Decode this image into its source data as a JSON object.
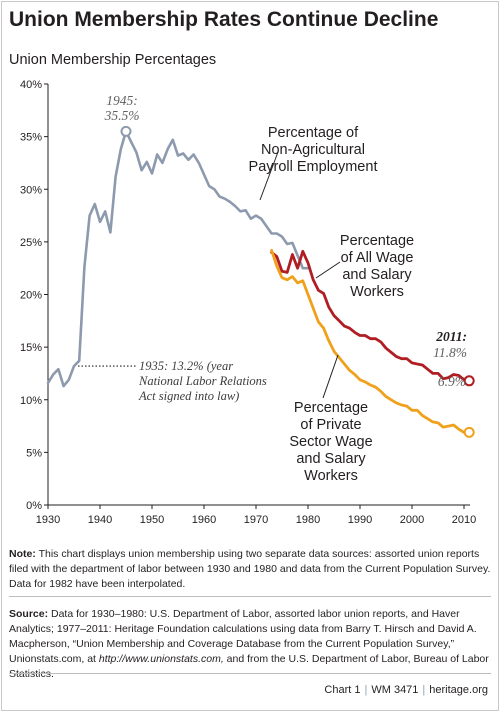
{
  "title": "Union Membership Rates Continue Decline",
  "subtitle": "Union Membership Percentages",
  "chart_data": {
    "type": "line",
    "xlim": [
      1930,
      2012
    ],
    "ylim": [
      0,
      40
    ],
    "x_ticks": [
      1930,
      1940,
      1950,
      1960,
      1970,
      1980,
      1990,
      2000,
      2010
    ],
    "y_ticks": [
      "0%",
      "5%",
      "10%",
      "15%",
      "20%",
      "25%",
      "30%",
      "35%",
      "40%"
    ],
    "grid": false,
    "series": [
      {
        "name": "Percentage of Non-Agricultural Payroll Employment",
        "color": "#8d9aae",
        "x": [
          1930,
          1931,
          1932,
          1933,
          1934,
          1935,
          1936,
          1937,
          1938,
          1939,
          1940,
          1941,
          1942,
          1943,
          1944,
          1945,
          1946,
          1947,
          1948,
          1949,
          1950,
          1951,
          1952,
          1953,
          1954,
          1955,
          1956,
          1957,
          1958,
          1959,
          1960,
          1961,
          1962,
          1963,
          1964,
          1965,
          1966,
          1967,
          1968,
          1969,
          1970,
          1971,
          1972,
          1973,
          1974,
          1975,
          1976,
          1977,
          1978,
          1979,
          1980
        ],
        "values": [
          11.6,
          12.4,
          12.9,
          11.3,
          11.9,
          13.2,
          13.7,
          22.6,
          27.5,
          28.6,
          26.9,
          27.9,
          25.9,
          31.2,
          33.8,
          35.5,
          34.5,
          33.5,
          31.8,
          32.6,
          31.5,
          33.3,
          32.5,
          33.8,
          34.7,
          33.2,
          33.4,
          32.8,
          33.3,
          32.5,
          31.4,
          30.3,
          30.0,
          29.3,
          29.1,
          28.8,
          28.4,
          27.9,
          28.0,
          27.2,
          27.5,
          27.2,
          26.5,
          25.8,
          25.8,
          25.5,
          24.8,
          24.9,
          23.7,
          22.5,
          22.5
        ]
      },
      {
        "name": "Percentage of All Wage and Salary Workers",
        "color": "#b01e23",
        "x": [
          1973,
          1974,
          1975,
          1976,
          1977,
          1978,
          1979,
          1980,
          1981,
          1982,
          1983,
          1984,
          1985,
          1986,
          1987,
          1988,
          1989,
          1990,
          1991,
          1992,
          1993,
          1994,
          1995,
          1996,
          1997,
          1998,
          1999,
          2000,
          2001,
          2002,
          2003,
          2004,
          2005,
          2006,
          2007,
          2008,
          2009,
          2010,
          2011
        ],
        "values": [
          24.0,
          23.6,
          22.2,
          22.1,
          23.8,
          22.5,
          24.1,
          23.0,
          21.4,
          20.4,
          20.1,
          18.8,
          18.0,
          17.5,
          17.0,
          16.8,
          16.4,
          16.1,
          16.1,
          15.8,
          15.8,
          15.5,
          14.9,
          14.5,
          14.1,
          13.9,
          13.9,
          13.5,
          13.4,
          13.3,
          12.9,
          12.5,
          12.5,
          12.0,
          12.1,
          12.4,
          12.3,
          11.9,
          11.8
        ]
      },
      {
        "name": "Percentage of Private Sector Wage and Salary Workers",
        "color": "#f0a11c",
        "x": [
          1973,
          1974,
          1975,
          1976,
          1977,
          1978,
          1979,
          1980,
          1981,
          1982,
          1983,
          1984,
          1985,
          1986,
          1987,
          1988,
          1989,
          1990,
          1991,
          1992,
          1993,
          1994,
          1995,
          1996,
          1997,
          1998,
          1999,
          2000,
          2001,
          2002,
          2003,
          2004,
          2005,
          2006,
          2007,
          2008,
          2009,
          2010,
          2011
        ],
        "values": [
          24.2,
          22.7,
          21.6,
          21.4,
          21.7,
          21.1,
          21.3,
          20.0,
          18.7,
          17.4,
          16.8,
          15.6,
          14.6,
          14.0,
          13.4,
          12.8,
          12.4,
          11.9,
          11.7,
          11.4,
          11.2,
          10.8,
          10.3,
          10.0,
          9.7,
          9.5,
          9.4,
          9.0,
          9.0,
          8.5,
          8.2,
          7.9,
          7.8,
          7.4,
          7.5,
          7.6,
          7.2,
          6.9,
          6.9
        ]
      }
    ]
  },
  "labels": {
    "nonag": [
      "Percentage of",
      "Non-Agricultural",
      "Payroll Employment"
    ],
    "allwage": [
      "Percentage",
      "of All Wage",
      "and Salary",
      "Workers"
    ],
    "private": [
      "Percentage",
      "of Private",
      "Sector Wage",
      "and Salary",
      "Workers"
    ],
    "peak": [
      "1945:",
      "35.5%"
    ],
    "nlra": [
      "1935: 13.2% (year",
      "National Labor Relations",
      "Act signed into law)"
    ],
    "end_all": [
      "2011:",
      "11.8%"
    ],
    "end_private": "6.9%"
  },
  "note": {
    "label": "Note:",
    "text": " This chart displays union membership using two separate data sources: assorted union reports filed with the department of labor between 1930 and 1980 and data from the Current Population Survey. Data for 1982 have been interpolated."
  },
  "source": {
    "label": "Source:",
    "text1": " Data for 1930–1980: U.S. Department of Labor, assorted labor union reports, and Haver Analytics; 1977–2011: Heritage Foundation calculations using data from Barry T. Hirsch and David A. Macpherson, “Union Membership and Coverage Database from the Current Population Survey,” Unionstats.com, at ",
    "link1": "http://www.unionstats.com,",
    "text2": " and from the U.S. Department of Labor, Bureau of Labor Statistics."
  },
  "footer": {
    "chart": "Chart 1",
    "wm": "WM 3471",
    "site": "heritage.org"
  }
}
